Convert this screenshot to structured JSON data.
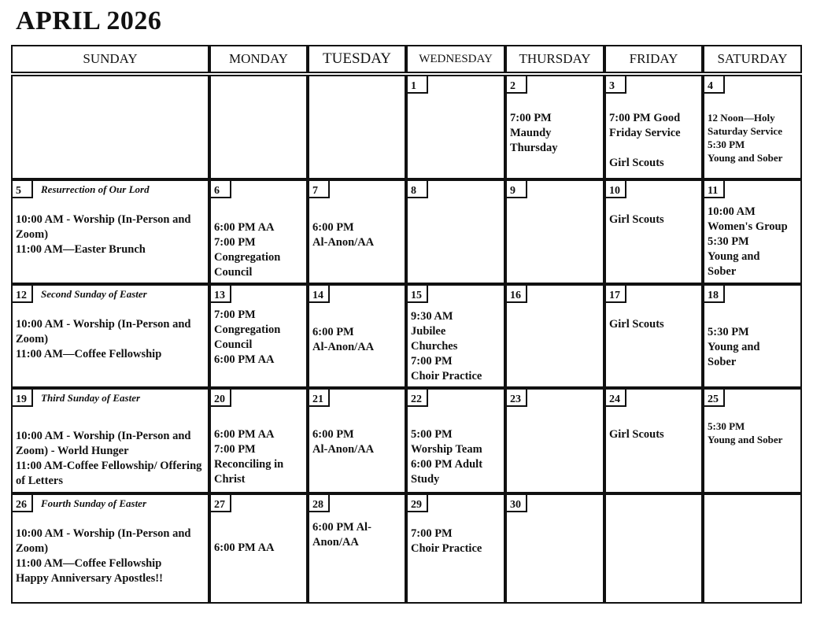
{
  "title": "APRIL 2026",
  "weekdays": [
    "SUNDAY",
    "MONDAY",
    "TUESDAY",
    "WEDNESDAY",
    "THURSDAY",
    "FRIDAY",
    "SATURDAY"
  ],
  "weeks": [
    [
      {
        "day": "",
        "note": "",
        "events": ""
      },
      {
        "day": "",
        "note": "",
        "events": ""
      },
      {
        "day": "",
        "note": "",
        "events": ""
      },
      {
        "day": "1",
        "note": "",
        "events": ""
      },
      {
        "day": "2",
        "note": "",
        "events": "7:00 PM\nMaundy\nThursday"
      },
      {
        "day": "3",
        "note": "",
        "events": "7:00 PM Good Friday Service\n\nGirl Scouts"
      },
      {
        "day": "4",
        "note": "",
        "events": "12 Noon—Holy Saturday Service\n5:30 PM\nYoung and Sober"
      }
    ],
    [
      {
        "day": "5",
        "note": "Resurrection of Our Lord",
        "events": "10:00 AM - Worship (In-Person and Zoom)\n11:00 AM—Easter Brunch"
      },
      {
        "day": "6",
        "note": "",
        "events": "6:00 PM AA\n7:00 PM\nCongregation Council"
      },
      {
        "day": "7",
        "note": "",
        "events": "6:00 PM\nAl-Anon/AA"
      },
      {
        "day": "8",
        "note": "",
        "events": ""
      },
      {
        "day": "9",
        "note": "",
        "events": ""
      },
      {
        "day": "10",
        "note": "",
        "events": "Girl Scouts"
      },
      {
        "day": "11",
        "note": "",
        "events": "10:00 AM\nWomen's Group\n5:30 PM\nYoung and\nSober"
      }
    ],
    [
      {
        "day": "12",
        "note": "Second Sunday of Easter",
        "events": "10:00 AM - Worship (In-Person and Zoom)\n11:00 AM—Coffee Fellowship"
      },
      {
        "day": "13",
        "note": "",
        "events": "7:00 PM\nCongregation\nCouncil\n6:00 PM AA"
      },
      {
        "day": "14",
        "note": "",
        "events": "6:00 PM\nAl-Anon/AA"
      },
      {
        "day": "15",
        "note": "",
        "events": "9:30 AM\nJubilee\nChurches\n7:00 PM\nChoir Practice"
      },
      {
        "day": "16",
        "note": "",
        "events": ""
      },
      {
        "day": "17",
        "note": "",
        "events": "Girl Scouts"
      },
      {
        "day": "18",
        "note": "",
        "events": "5:30 PM\nYoung and\nSober"
      }
    ],
    [
      {
        "day": "19",
        "note": "Third Sunday of Easter",
        "events": "10:00 AM - Worship (In-Person and Zoom) - World Hunger\n11:00 AM-Coffee Fellowship/ Offering of Letters"
      },
      {
        "day": "20",
        "note": "",
        "events": "6:00 PM AA\n7:00 PM\nReconciling in Christ"
      },
      {
        "day": "21",
        "note": "",
        "events": "6:00 PM\nAl-Anon/AA"
      },
      {
        "day": "22",
        "note": "",
        "events": "5:00 PM\nWorship Team\n6:00 PM Adult Study"
      },
      {
        "day": "23",
        "note": "",
        "events": ""
      },
      {
        "day": "24",
        "note": "",
        "events": "Girl Scouts"
      },
      {
        "day": "25",
        "note": "",
        "events": "5:30 PM\nYoung and Sober"
      }
    ],
    [
      {
        "day": "26",
        "note": "Fourth Sunday of Easter",
        "events": "10:00 AM - Worship (In-Person and Zoom)\n11:00 AM—Coffee Fellowship\n   Happy Anniversary Apostles!!"
      },
      {
        "day": "27",
        "note": "",
        "events": "6:00 PM AA"
      },
      {
        "day": "28",
        "note": "",
        "events": "6:00 PM Al-Anon/AA"
      },
      {
        "day": "29",
        "note": "",
        "events": "7:00 PM\nChoir Practice"
      },
      {
        "day": "30",
        "note": "",
        "events": ""
      },
      {
        "day": "",
        "note": "",
        "events": ""
      },
      {
        "day": "",
        "note": "",
        "events": ""
      }
    ]
  ]
}
